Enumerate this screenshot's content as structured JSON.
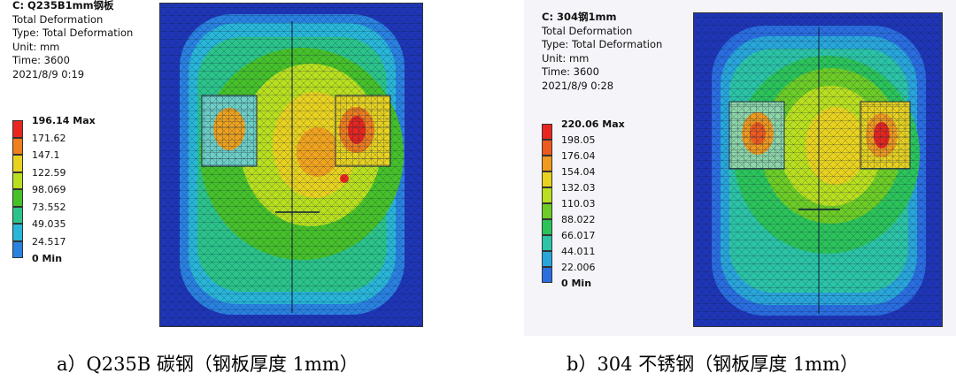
{
  "panels": [
    {
      "id": "a",
      "info": {
        "title": "C: Q235B1mm钢板",
        "lines": [
          "Total Deformation",
          "Type: Total Deformation",
          "Unit: mm",
          "Time: 3600",
          "2021/8/9 0:19"
        ]
      },
      "legend": {
        "labels": [
          "196.14 Max",
          "171.62",
          "147.1",
          "122.59",
          "98.069",
          "73.552",
          "49.035",
          "24.517",
          "0 Min"
        ],
        "colors": [
          "#e8261f",
          "#f07f1e",
          "#e8d21f",
          "#b9df1f",
          "#47c12a",
          "#2cc48a",
          "#29b6d8",
          "#2a82e0",
          "#1a32d6"
        ]
      },
      "caption": "a）Q235B 碳钢（钢板厚度 1mm）"
    },
    {
      "id": "b",
      "info": {
        "title": "C: 304钢1mm",
        "lines": [
          "Total Deformation",
          "Type: Total Deformation",
          "Unit: mm",
          "Time: 3600",
          "2021/8/9 0:28"
        ]
      },
      "legend": {
        "labels": [
          "220.06 Max",
          "198.05",
          "176.04",
          "154.04",
          "132.03",
          "110.03",
          "88.022",
          "66.017",
          "44.011",
          "22.006",
          "0 Min"
        ],
        "colors": [
          "#e8261f",
          "#ee5a1e",
          "#f09a1f",
          "#e8d21f",
          "#b9df1f",
          "#6dcd26",
          "#2cc45a",
          "#2cc4a6",
          "#29a6da",
          "#2a6ee0",
          "#1a32d6"
        ]
      },
      "caption": "b）304 不锈钢（钢板厚度 1mm）"
    }
  ]
}
